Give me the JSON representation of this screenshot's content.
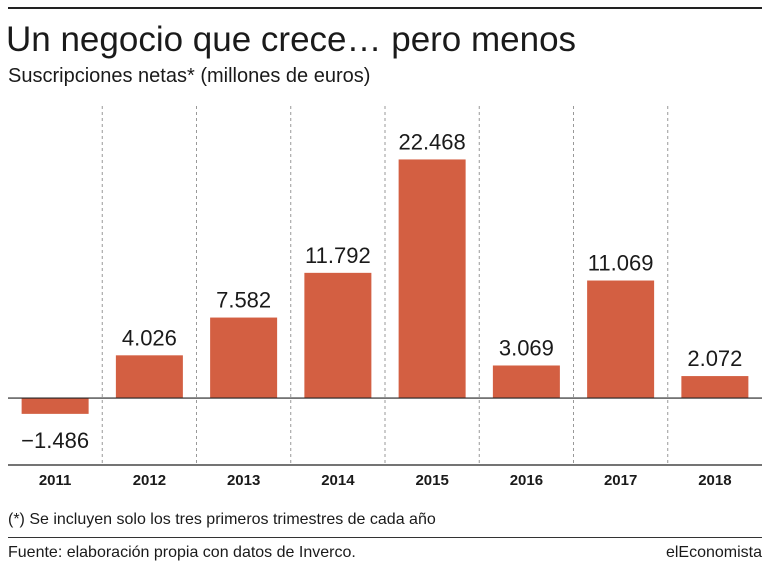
{
  "header": {
    "title": "Un negocio que crece… pero menos",
    "subtitle": "Suscripciones netas* (millones de euros)"
  },
  "colors": {
    "bar": "#d35f42",
    "axis": "#222222",
    "grid": "#999999",
    "text": "#1a1a1a"
  },
  "chart_data": {
    "type": "bar",
    "title": "Un negocio que crece… pero menos",
    "subtitle": "Suscripciones netas* (millones de euros)",
    "xlabel": "",
    "ylabel": "",
    "categories": [
      "2011",
      "2012",
      "2013",
      "2014",
      "2015",
      "2016",
      "2017",
      "2018"
    ],
    "values": [
      -1486,
      4026,
      7582,
      11792,
      22468,
      3069,
      11069,
      2072
    ],
    "value_labels": [
      "−1.486",
      "4.026",
      "7.582",
      "11.792",
      "22.468",
      "3.069",
      "11.069",
      "2.072"
    ],
    "ylim": [
      -6300,
      27500
    ],
    "grid": "vertical dashed separators",
    "legend": "none"
  },
  "footer": {
    "note": "(*) Se incluyen solo los tres primeros trimestres de cada año",
    "source": "Fuente: elaboración propia con datos de Inverco.",
    "brand": "elEconomista"
  }
}
